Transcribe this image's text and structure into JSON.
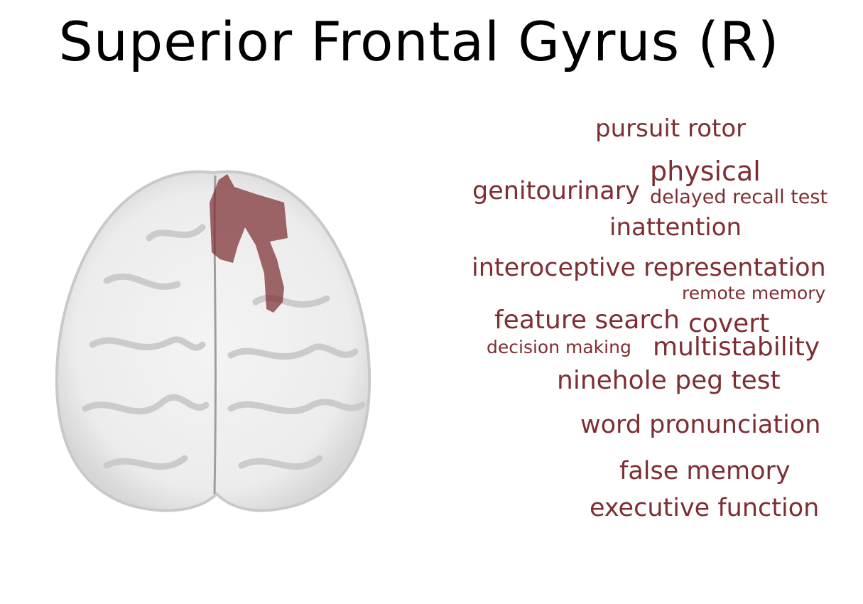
{
  "title": "Superior Frontal Gyrus (R)",
  "region_color": "#7d2e33",
  "word_cloud": [
    "pursuit rotor",
    "physical",
    "genitourinary",
    "delayed recall test",
    "inattention",
    "interoceptive representation",
    "remote memory",
    "feature search",
    "covert",
    "decision making",
    "multistability",
    "ninehole peg test",
    "word pronunciation",
    "false memory",
    "executive function"
  ]
}
